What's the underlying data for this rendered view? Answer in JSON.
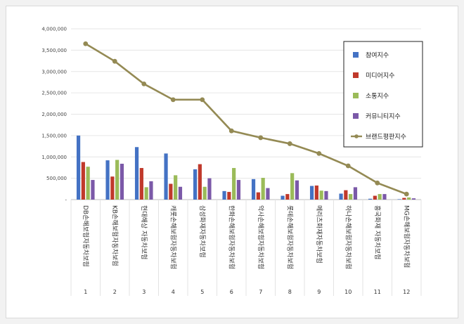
{
  "chart_data": {
    "type": "bar",
    "title": "",
    "xlabel": "",
    "ylabel": "",
    "ylim": [
      0,
      4000000
    ],
    "y_ticks": [
      "-",
      "500,000",
      "1,000,000",
      "1,500,000",
      "2,000,000",
      "2,500,000",
      "3,000,000",
      "3,500,000",
      "4,000,000"
    ],
    "grid": "horizontal",
    "legend_position": "top-right",
    "categories": [
      "DB손해보험자동차보험",
      "KB손해보험자동차보험",
      "현대해상 자동차보험",
      "캐롯손해보험자동차보험",
      "삼성화재자동차보험",
      "한화손해보험자동차보험",
      "악사손해보험자동차보험",
      "롯데손해보험자동차보험",
      "메리츠화재자동차보험",
      "하나손해보험자동차보험",
      "흥국화재 자동차보험",
      "MG손해보험자동차보험"
    ],
    "index_labels": [
      "1",
      "2",
      "3",
      "4",
      "5",
      "6",
      "7",
      "8",
      "9",
      "10",
      "11",
      "12"
    ],
    "series": [
      {
        "name": "참여지수",
        "color": "#4472c4",
        "values": [
          1500000,
          920000,
          1230000,
          1080000,
          710000,
          200000,
          480000,
          90000,
          320000,
          140000,
          20000,
          10000
        ]
      },
      {
        "name": "미디어지수",
        "color": "#c0392b",
        "values": [
          880000,
          540000,
          740000,
          370000,
          830000,
          180000,
          170000,
          130000,
          330000,
          220000,
          90000,
          40000
        ]
      },
      {
        "name": "소통지수",
        "color": "#9bbb59",
        "values": [
          770000,
          930000,
          290000,
          570000,
          300000,
          740000,
          510000,
          620000,
          210000,
          130000,
          130000,
          50000
        ]
      },
      {
        "name": "커뮤니티지수",
        "color": "#7b59a8",
        "values": [
          460000,
          840000,
          430000,
          300000,
          500000,
          460000,
          270000,
          450000,
          200000,
          290000,
          130000,
          30000
        ]
      }
    ],
    "line_series": {
      "name": "브랜드평판지수",
      "color": "#948a54",
      "values": [
        3650000,
        3240000,
        2710000,
        2340000,
        2340000,
        1610000,
        1450000,
        1310000,
        1080000,
        790000,
        390000,
        130000
      ]
    }
  }
}
